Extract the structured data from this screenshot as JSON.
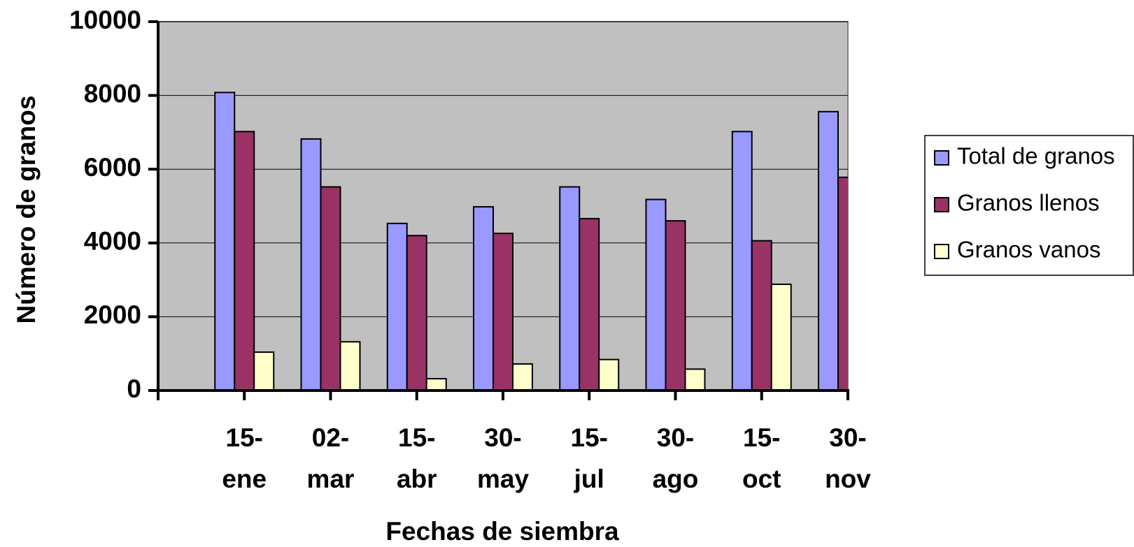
{
  "chart_data": {
    "type": "bar",
    "x_label": "Fechas de siembra",
    "y_label": "Número de granos",
    "categories": [
      "15-ene",
      "02-mar",
      "15-abr",
      "30-may",
      "15-jul",
      "30-ago",
      "15-oct",
      "30-nov"
    ],
    "series": [
      {
        "name": "Total de granos",
        "color": "#9999ff",
        "values": [
          8080,
          6820,
          4530,
          4980,
          5520,
          5180,
          7020,
          7560
        ]
      },
      {
        "name": "Granos llenos",
        "color": "#993366",
        "values": [
          7020,
          5520,
          4200,
          4260,
          4660,
          4600,
          4060,
          5780
        ]
      },
      {
        "name": "Granos vanos",
        "color": "#ffffcc",
        "values": [
          1040,
          1320,
          320,
          720,
          840,
          580,
          2880,
          null
        ]
      }
    ],
    "ylim": [
      0,
      10000
    ],
    "yticks": [
      0,
      2000,
      4000,
      6000,
      8000,
      10000
    ],
    "grid": true
  }
}
